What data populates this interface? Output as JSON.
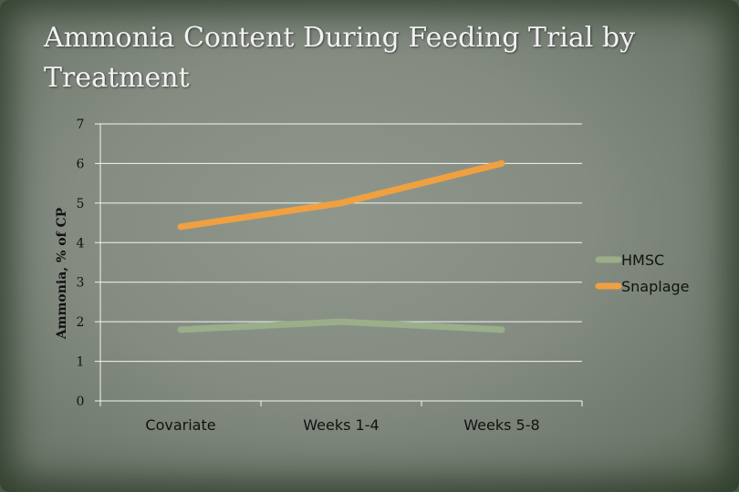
{
  "slide": {
    "title": "Ammonia Content During Feeding Trial by Treatment"
  },
  "chart_data": {
    "type": "line",
    "title": "Ammonia Content During Feeding Trial by Treatment",
    "xlabel": "",
    "ylabel": "Ammonia, % of CP",
    "categories": [
      "Covariate",
      "Weeks 1-4",
      "Weeks 5-8"
    ],
    "ylim": [
      0,
      7
    ],
    "yticks": [
      0,
      1,
      2,
      3,
      4,
      5,
      6,
      7
    ],
    "grid": true,
    "legend": "right",
    "series": [
      {
        "name": "HMSC",
        "values": [
          1.8,
          2.0,
          1.8
        ],
        "color": "#9aae8a"
      },
      {
        "name": "Snaplage",
        "values": [
          4.4,
          5.0,
          6.0
        ],
        "color": "#f0a040"
      }
    ]
  }
}
